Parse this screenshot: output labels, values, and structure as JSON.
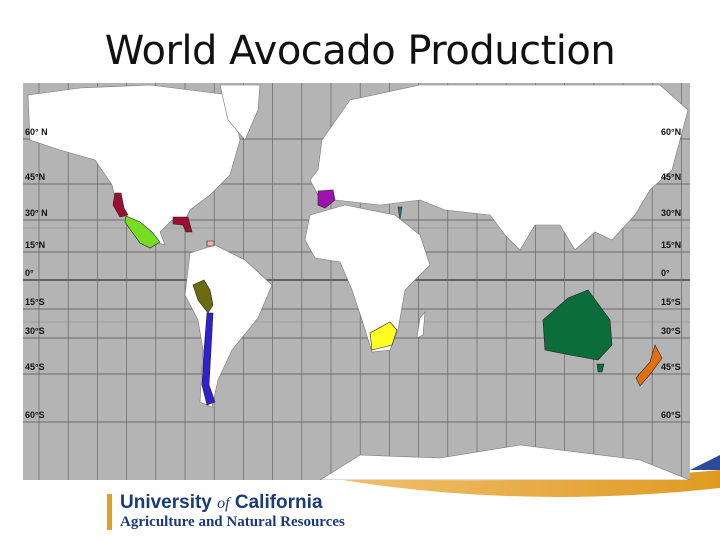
{
  "title": "World Avocado Production",
  "map": {
    "background_ocean": "#b4b4b4",
    "land": "#ffffff",
    "latitude_labels": [
      "60° N",
      "45°N",
      "30° N",
      "15°N",
      "0°",
      "15°S",
      "30°S",
      "45°S",
      "60°S"
    ],
    "latitude_labels_right": [
      "60°N",
      "45°N",
      "30°N",
      "15°N",
      "0°",
      "15°S",
      "30°S",
      "45°S",
      "60°S"
    ],
    "regions": [
      {
        "name": "California",
        "color": "#9b1030"
      },
      {
        "name": "Florida",
        "color": "#9b1030"
      },
      {
        "name": "Mexico",
        "color": "#77dd22"
      },
      {
        "name": "Dominican Republic",
        "color": "#f4b0b0"
      },
      {
        "name": "Spain",
        "color": "#a010b0"
      },
      {
        "name": "Israel",
        "color": "#108080"
      },
      {
        "name": "Peru",
        "color": "#6b6b10"
      },
      {
        "name": "Chile",
        "color": "#3020d0"
      },
      {
        "name": "South Africa",
        "color": "#ffff20"
      },
      {
        "name": "Australia",
        "color": "#0b6e3a"
      },
      {
        "name": "New Zealand",
        "color": "#e07010"
      }
    ]
  },
  "logo": {
    "line1_a": "University ",
    "line1_of": "of",
    "line1_b": " California",
    "line2": "Agriculture and Natural Resources",
    "colors": {
      "navy": "#1a3a7a",
      "gold": "#e0a020"
    }
  }
}
